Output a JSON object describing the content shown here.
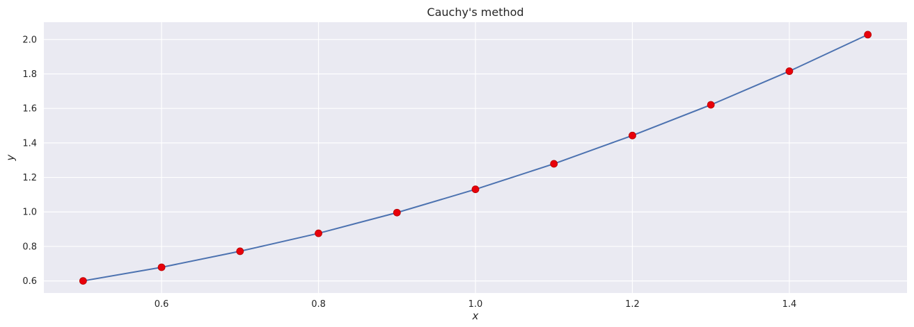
{
  "chart_data": {
    "type": "line",
    "title": "Cauchy's method",
    "xlabel": "x",
    "ylabel": "y",
    "xlim": [
      0.45,
      1.55
    ],
    "ylim": [
      0.53,
      2.1
    ],
    "xticks": [
      0.6,
      0.8,
      1.0,
      1.2,
      1.4
    ],
    "xtick_labels": [
      "0.6",
      "0.8",
      "1.0",
      "1.2",
      "1.4"
    ],
    "yticks": [
      0.6,
      0.8,
      1.0,
      1.2,
      1.4,
      1.6,
      1.8,
      2.0
    ],
    "ytick_labels": [
      "0.6",
      "0.8",
      "1.0",
      "1.2",
      "1.4",
      "1.6",
      "1.8",
      "2.0"
    ],
    "grid": true,
    "series": [
      {
        "kind": "line",
        "color": "#4c72b0",
        "x": [
          0.5,
          0.6,
          0.7,
          0.8,
          0.9,
          1.0,
          1.1,
          1.2,
          1.3,
          1.4,
          1.5
        ],
        "y": [
          0.6,
          0.679,
          0.772,
          0.876,
          0.996,
          1.131,
          1.279,
          1.443,
          1.621,
          1.816,
          2.028
        ]
      },
      {
        "kind": "scatter",
        "color": "#e8000b",
        "x": [
          0.5,
          0.6,
          0.7,
          0.8,
          0.9,
          1.0,
          1.1,
          1.2,
          1.3,
          1.4,
          1.5
        ],
        "y": [
          0.6,
          0.679,
          0.772,
          0.876,
          0.996,
          1.131,
          1.279,
          1.443,
          1.621,
          1.816,
          2.028
        ]
      }
    ],
    "colors": {
      "background": "#eaeaf2",
      "grid": "#ffffff"
    }
  }
}
